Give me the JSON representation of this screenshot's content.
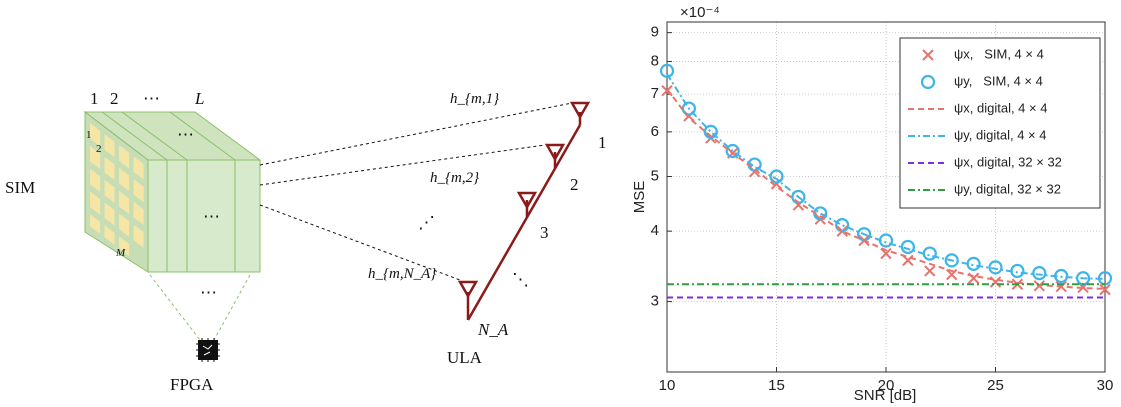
{
  "diagram": {
    "layer_labels": [
      "1",
      "2",
      "⋯",
      "L"
    ],
    "face_labels": [
      "1",
      "2",
      "M"
    ],
    "sim_label": "SIM",
    "dots_inside": "⋯",
    "dots_below": "⋯",
    "fpga_label": "FPGA",
    "channel_labels": [
      "h_{m,1}",
      "h_{m,2}",
      "h_{m,N_A}"
    ],
    "channel_dots": "⋰",
    "antenna_labels": [
      "1",
      "2",
      "3",
      "N_A"
    ],
    "array_dots": "⋱",
    "ula_label": "ULA"
  },
  "chart_data": {
    "type": "line",
    "ylabel": "MSE",
    "xlabel": "SNR [dB]",
    "y_scale_label": "×10⁻⁴",
    "log_y": true,
    "grid": true,
    "x": [
      10,
      11,
      12,
      13,
      14,
      15,
      16,
      17,
      18,
      19,
      20,
      21,
      22,
      23,
      24,
      25,
      26,
      27,
      28,
      29,
      30
    ],
    "xlim": [
      10,
      30
    ],
    "xticks": [
      10,
      15,
      20,
      25,
      30
    ],
    "ylim": [
      2.25,
      9.4
    ],
    "yticks": [
      3,
      4,
      5,
      6,
      7,
      8,
      9
    ],
    "series": [
      {
        "name": "ψx,   SIM, 4 × 4",
        "color": "#e8736c",
        "marker": "x",
        "values": [
          7.1,
          6.4,
          5.85,
          5.5,
          5.1,
          4.85,
          4.45,
          4.2,
          4.0,
          3.85,
          3.65,
          3.55,
          3.4,
          3.35,
          3.3,
          3.25,
          3.22,
          3.2,
          3.19,
          3.18,
          3.15
        ]
      },
      {
        "name": "ψy,   SIM, 4 × 4",
        "color": "#3db5e8",
        "marker": "o",
        "values": [
          7.7,
          6.6,
          6.0,
          5.55,
          5.25,
          5.0,
          4.6,
          4.3,
          4.1,
          3.95,
          3.85,
          3.75,
          3.65,
          3.55,
          3.5,
          3.45,
          3.4,
          3.37,
          3.33,
          3.3,
          3.3
        ]
      },
      {
        "name": "ψx, digital, 4 × 4",
        "color": "#e8736c",
        "dash": "6,4",
        "values": [
          7.15,
          6.35,
          5.9,
          5.5,
          5.15,
          4.8,
          4.5,
          4.25,
          4.0,
          3.85,
          3.7,
          3.6,
          3.5,
          3.4,
          3.33,
          3.28,
          3.24,
          3.21,
          3.19,
          3.17,
          3.16
        ]
      },
      {
        "name": "ψy, digital, 4 × 4",
        "color": "#3db5e8",
        "dash": "7,3,2,3",
        "values": [
          7.6,
          6.6,
          6.0,
          5.55,
          5.2,
          4.95,
          4.6,
          4.3,
          4.1,
          3.95,
          3.82,
          3.72,
          3.62,
          3.55,
          3.48,
          3.43,
          3.38,
          3.35,
          3.32,
          3.3,
          3.29
        ]
      },
      {
        "name": "ψx, digital, 32 × 32",
        "color": "#7d2ee0",
        "dash": "6,4",
        "values": [
          3.05,
          3.05,
          3.05,
          3.05,
          3.05,
          3.05,
          3.05,
          3.05,
          3.05,
          3.05,
          3.05,
          3.05,
          3.05,
          3.05,
          3.05,
          3.05,
          3.05,
          3.05,
          3.05,
          3.05,
          3.05
        ]
      },
      {
        "name": "ψy, digital, 32 × 32",
        "color": "#2e9e3e",
        "dash": "7,3,2,3",
        "values": [
          3.22,
          3.22,
          3.22,
          3.22,
          3.22,
          3.22,
          3.22,
          3.22,
          3.22,
          3.22,
          3.22,
          3.22,
          3.22,
          3.22,
          3.22,
          3.22,
          3.22,
          3.22,
          3.22,
          3.22,
          3.22
        ]
      }
    ]
  }
}
